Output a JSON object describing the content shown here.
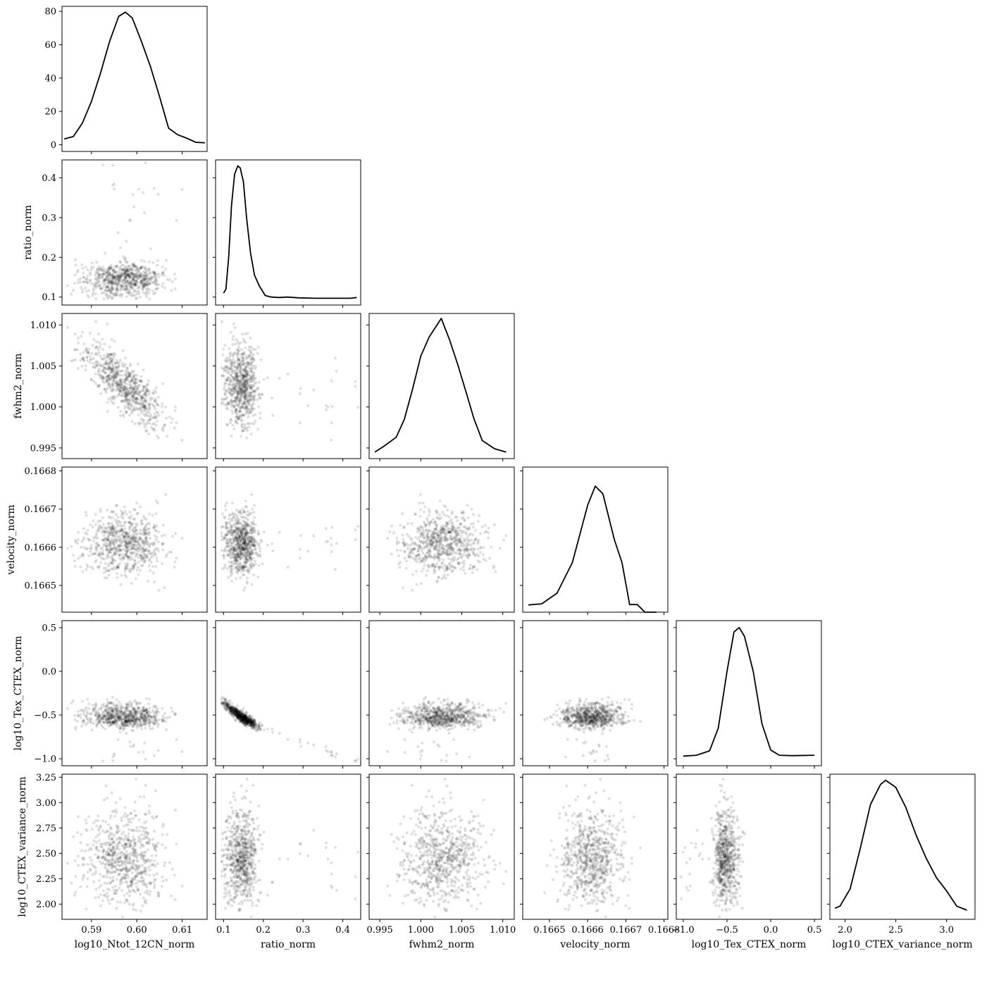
{
  "chart_data": {
    "type": "scatter",
    "kind": "corner-plot",
    "params": [
      {
        "name": "log10_Ntot_12CN_norm",
        "range": [
          0.5835,
          0.6155
        ],
        "ticks": [
          0.59,
          0.6,
          0.61
        ],
        "tick_labels": [
          "0.59",
          "0.60",
          "0.61"
        ],
        "mean": 0.5975,
        "sd": 0.0045
      },
      {
        "name": "ratio_norm",
        "range": [
          0.08,
          0.445
        ],
        "ticks": [
          0.1,
          0.2,
          0.3,
          0.4
        ],
        "tick_labels": [
          "0.1",
          "0.2",
          "0.3",
          "0.4"
        ],
        "mean": 0.145,
        "sd": 0.022
      },
      {
        "name": "fwhm2_norm",
        "range": [
          0.9937,
          1.0114
        ],
        "ticks": [
          0.995,
          1.0,
          1.005,
          1.01
        ],
        "tick_labels": [
          "0.995",
          "1.000",
          "1.005",
          "1.010"
        ],
        "mean": 1.0025,
        "sd": 0.0025
      },
      {
        "name": "velocity_norm",
        "range": [
          0.16643,
          0.16681
        ],
        "ticks": [
          0.1665,
          0.1666,
          0.1667,
          0.1668
        ],
        "tick_labels": [
          "0.1665",
          "0.1666",
          "0.1667",
          "0.1668"
        ],
        "mean": 0.16661,
        "sd": 4e-05
      },
      {
        "name": "log10_Tex_CTEX_norm",
        "range": [
          -1.08,
          0.58
        ],
        "ticks": [
          -1.0,
          -0.5,
          0.0,
          0.5
        ],
        "tick_labels": [
          "−1.0",
          "−0.5",
          "0.0",
          "0.5"
        ],
        "mean": -0.36,
        "sd": 0.12
      },
      {
        "name": "log10_CTEX_variance_norm",
        "range": [
          1.85,
          3.28
        ],
        "ticks": [
          2.0,
          2.5,
          3.0
        ],
        "tick_labels": [
          "2.0",
          "2.5",
          "3.0"
        ],
        "mean": 2.45,
        "sd": 0.24
      }
    ],
    "first_diag_y": {
      "range": [
        -4,
        83
      ],
      "ticks": [
        0,
        20,
        40,
        60,
        80
      ],
      "tick_labels": [
        "0",
        "20",
        "40",
        "60",
        "80"
      ]
    },
    "y_ticks": [
      null,
      {
        "ticks": [
          0.1,
          0.2,
          0.3,
          0.4
        ],
        "tick_labels": [
          "0.1",
          "0.2",
          "0.3",
          "0.4"
        ]
      },
      {
        "ticks": [
          0.995,
          1.0,
          1.005,
          1.01
        ],
        "tick_labels": [
          "0.995",
          "1.000",
          "1.005",
          "1.010"
        ]
      },
      {
        "ticks": [
          0.1665,
          0.1666,
          0.1667,
          0.1668
        ],
        "tick_labels": [
          "0.1665",
          "0.1666",
          "0.1667",
          "0.1668"
        ]
      },
      {
        "ticks": [
          -1.0,
          -0.5,
          0.0,
          0.5
        ],
        "tick_labels": [
          "−1.0",
          "−0.5",
          "0.0",
          "0.5"
        ]
      },
      {
        "ticks": [
          2.0,
          2.25,
          2.5,
          2.75,
          3.0,
          3.25
        ],
        "tick_labels": [
          "2.00",
          "2.25",
          "2.50",
          "2.75",
          "3.00",
          "3.25"
        ]
      }
    ],
    "kde_curves": [
      [
        [
          0.584,
          3.5
        ],
        [
          0.586,
          5
        ],
        [
          0.588,
          13
        ],
        [
          0.59,
          26
        ],
        [
          0.592,
          43
        ],
        [
          0.594,
          62
        ],
        [
          0.596,
          77
        ],
        [
          0.5975,
          79.5
        ],
        [
          0.599,
          76
        ],
        [
          0.601,
          62
        ],
        [
          0.603,
          47
        ],
        [
          0.605,
          29
        ],
        [
          0.607,
          10
        ],
        [
          0.609,
          6
        ],
        [
          0.611,
          4
        ],
        [
          0.613,
          1.5
        ],
        [
          0.615,
          1.2
        ]
      ],
      [
        [
          0.1,
          0.11
        ],
        [
          0.106,
          0.12
        ],
        [
          0.113,
          0.2
        ],
        [
          0.12,
          0.33
        ],
        [
          0.128,
          0.41
        ],
        [
          0.136,
          0.43
        ],
        [
          0.142,
          0.425
        ],
        [
          0.15,
          0.39
        ],
        [
          0.158,
          0.3
        ],
        [
          0.168,
          0.21
        ],
        [
          0.178,
          0.155
        ],
        [
          0.19,
          0.128
        ],
        [
          0.205,
          0.104
        ],
        [
          0.22,
          0.1
        ],
        [
          0.24,
          0.099
        ],
        [
          0.26,
          0.1
        ],
        [
          0.29,
          0.098
        ],
        [
          0.33,
          0.097
        ],
        [
          0.37,
          0.097
        ],
        [
          0.42,
          0.097
        ],
        [
          0.435,
          0.099
        ]
      ],
      [
        [
          0.9944,
          0.9945
        ],
        [
          0.9955,
          0.9952
        ],
        [
          0.997,
          0.9963
        ],
        [
          0.998,
          0.9985
        ],
        [
          0.999,
          1.0022
        ],
        [
          1.0,
          1.0062
        ],
        [
          1.001,
          1.0085
        ],
        [
          1.0025,
          1.0108
        ],
        [
          1.0035,
          1.0082
        ],
        [
          1.0045,
          1.0052
        ],
        [
          1.0055,
          1.0019
        ],
        [
          1.0065,
          0.9985
        ],
        [
          1.0075,
          0.9959
        ],
        [
          1.009,
          0.9949
        ],
        [
          1.0104,
          0.9945
        ]
      ],
      [
        [
          0.166445,
          0.166449
        ],
        [
          0.16648,
          0.166452
        ],
        [
          0.16652,
          0.16648
        ],
        [
          0.16656,
          0.16656
        ],
        [
          0.1666,
          0.16671
        ],
        [
          0.16662,
          0.16676
        ],
        [
          0.16664,
          0.16674
        ],
        [
          0.16667,
          0.16662
        ],
        [
          0.16669,
          0.16656
        ],
        [
          0.16671,
          0.16645
        ],
        [
          0.16673,
          0.16645
        ],
        [
          0.16675,
          0.16643
        ],
        [
          0.16678,
          0.16643
        ]
      ],
      [
        [
          -1.0,
          -0.97
        ],
        [
          -0.85,
          -0.96
        ],
        [
          -0.7,
          -0.91
        ],
        [
          -0.6,
          -0.65
        ],
        [
          -0.5,
          0.0
        ],
        [
          -0.42,
          0.45
        ],
        [
          -0.36,
          0.5
        ],
        [
          -0.3,
          0.4
        ],
        [
          -0.2,
          0.0
        ],
        [
          -0.1,
          -0.6
        ],
        [
          0.0,
          -0.9
        ],
        [
          0.1,
          -0.96
        ],
        [
          0.25,
          -0.965
        ],
        [
          0.5,
          -0.96
        ]
      ],
      [
        [
          1.9,
          1.96
        ],
        [
          1.95,
          1.98
        ],
        [
          2.05,
          2.15
        ],
        [
          2.15,
          2.55
        ],
        [
          2.25,
          2.98
        ],
        [
          2.35,
          3.18
        ],
        [
          2.4,
          3.22
        ],
        [
          2.5,
          3.15
        ],
        [
          2.6,
          2.95
        ],
        [
          2.7,
          2.68
        ],
        [
          2.8,
          2.45
        ],
        [
          2.9,
          2.26
        ],
        [
          3.0,
          2.13
        ],
        [
          3.1,
          1.98
        ],
        [
          3.2,
          1.94
        ]
      ]
    ],
    "correlations": {
      "0-2": -0.78,
      "1-4": "curved-strong-negative"
    },
    "n_samples": 700,
    "grid": false,
    "legend": "none"
  }
}
